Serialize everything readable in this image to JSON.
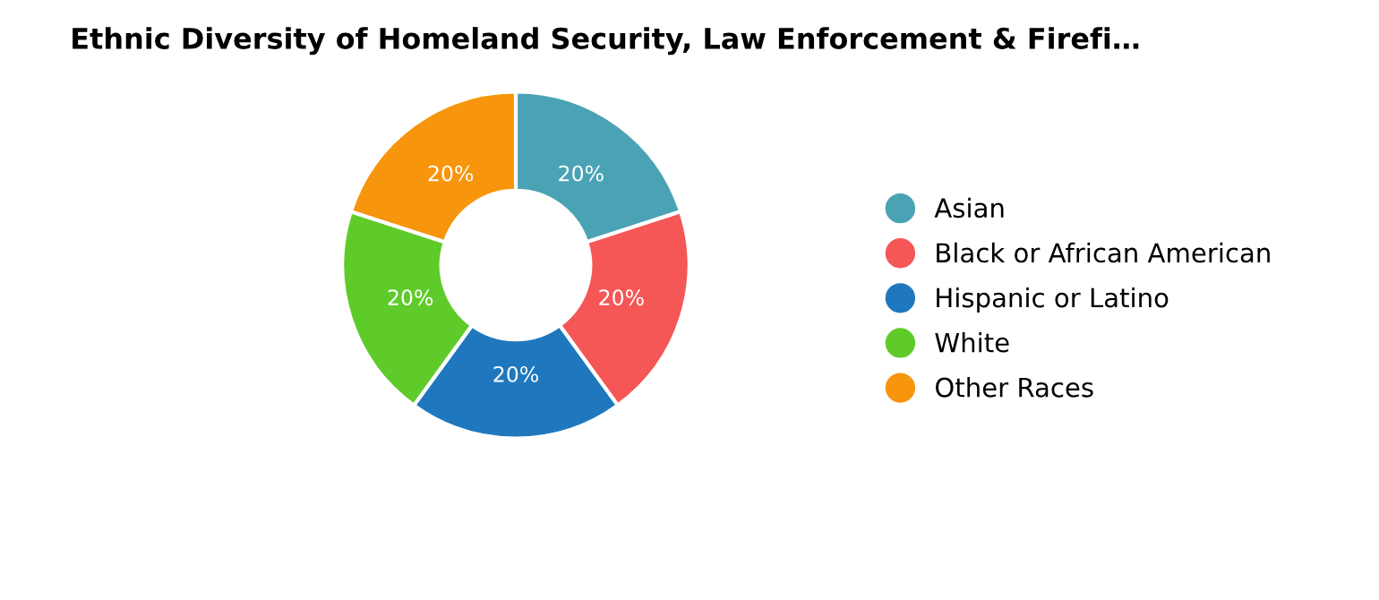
{
  "chart_data": {
    "type": "donut",
    "title": "Ethnic Diversity of Homeland Security, Law Enforcement & Firefi…",
    "categories": [
      "Asian",
      "Black or African American",
      "Hispanic or Latino",
      "White",
      "Other Races"
    ],
    "values": [
      20,
      20,
      20,
      20,
      20
    ],
    "colors": [
      "#4aa3b5",
      "#f55656",
      "#1f78be",
      "#5fcb2a",
      "#f7950c"
    ],
    "value_labels": [
      "20%",
      "20%",
      "20%",
      "20%",
      "20%"
    ],
    "legend": "right"
  }
}
